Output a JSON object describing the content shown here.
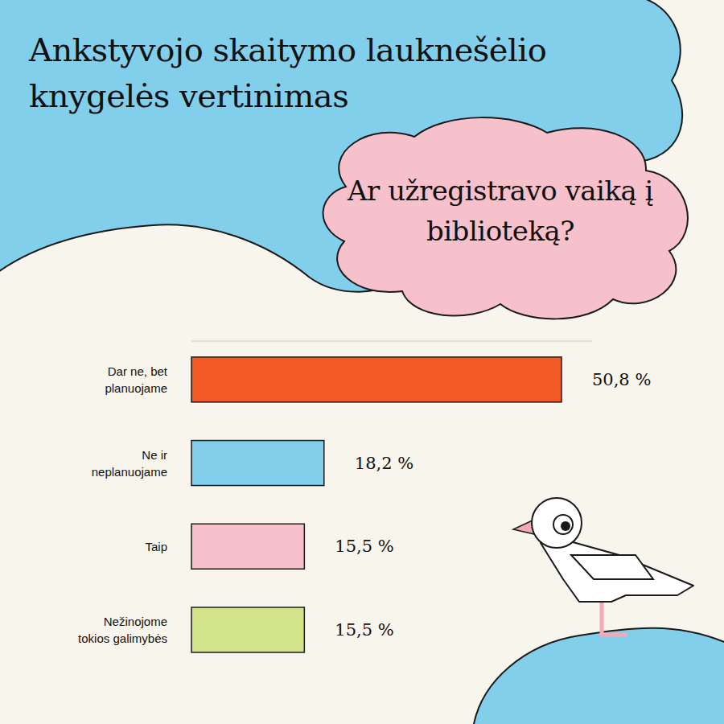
{
  "chart_data": {
    "type": "bar",
    "orientation": "horizontal",
    "title": "Ankstyvojo skaitymo lauknešėlio knygelės vertinimas",
    "subtitle": "Ar užregistravo vaiką į biblioteką?",
    "categories": [
      "Dar ne, bet planuojame",
      "Ne ir neplanuojame",
      "Taip",
      "Nežinojome tokios galimybės"
    ],
    "values": [
      50.8,
      18.2,
      15.5,
      15.5
    ],
    "value_labels": [
      "50,8 %",
      "18,2 %",
      "15,5 %",
      "15,5 %"
    ],
    "colors": [
      "#f15a24",
      "#82cfec",
      "#f7c1cb",
      "#d3e38a"
    ],
    "xlim": [
      0,
      55
    ],
    "data_labels": true,
    "tick_labels": "y",
    "grid": false
  }
}
